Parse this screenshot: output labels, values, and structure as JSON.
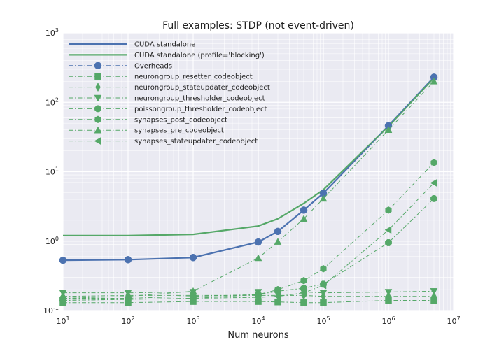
{
  "chart_data": {
    "type": "line",
    "title": "Full examples: STDP (not event-driven)",
    "xlabel": "Num neurons",
    "ylabel": "",
    "xscale": "log",
    "yscale": "log",
    "xlim": [
      10,
      10000000
    ],
    "ylim": [
      0.1,
      1000
    ],
    "x_ticks": [
      {
        "value": 10,
        "base": "10",
        "exp": "1"
      },
      {
        "value": 100,
        "base": "10",
        "exp": "2"
      },
      {
        "value": 1000,
        "base": "10",
        "exp": "3"
      },
      {
        "value": 10000,
        "base": "10",
        "exp": "4"
      },
      {
        "value": 100000,
        "base": "10",
        "exp": "5"
      },
      {
        "value": 1000000,
        "base": "10",
        "exp": "6"
      },
      {
        "value": 10000000,
        "base": "10",
        "exp": "7"
      }
    ],
    "y_ticks": [
      {
        "value": 0.1,
        "base": "10",
        "exp": "-1"
      },
      {
        "value": 1,
        "base": "10",
        "exp": "0"
      },
      {
        "value": 10,
        "base": "10",
        "exp": "1"
      },
      {
        "value": 100,
        "base": "10",
        "exp": "2"
      },
      {
        "value": 1000,
        "base": "10",
        "exp": "3"
      }
    ],
    "grid": true,
    "background": "#eaeaf2",
    "legend_position": "upper-left",
    "series": [
      {
        "name": "CUDA standalone",
        "color": "#4c72b0",
        "line": "solid",
        "marker": "none",
        "x": [
          10,
          100,
          1000,
          10000,
          20000,
          50000,
          100000,
          1000000,
          5000000
        ],
        "y": [
          0.53,
          0.54,
          0.58,
          0.97,
          1.38,
          2.8,
          4.9,
          46,
          230
        ]
      },
      {
        "name": "CUDA standalone (profile='blocking')",
        "color": "#55a868",
        "line": "solid",
        "marker": "none",
        "x": [
          10,
          100,
          1000,
          10000,
          20000,
          50000,
          100000,
          1000000,
          5000000
        ],
        "y": [
          1.2,
          1.2,
          1.25,
          1.65,
          2.1,
          3.5,
          5.5,
          45,
          225
        ]
      },
      {
        "name": "Overheads",
        "color": "#4c72b0",
        "line": "dashdot",
        "marker": "circle",
        "x": [
          10,
          100,
          1000,
          10000,
          20000,
          50000,
          100000,
          1000000,
          5000000
        ],
        "y": [
          0.53,
          0.54,
          0.58,
          0.97,
          1.38,
          2.8,
          4.9,
          46,
          230
        ]
      },
      {
        "name": "neurongroup_resetter_codeobject",
        "color": "#55a868",
        "line": "dashdot",
        "marker": "square",
        "x": [
          10,
          100,
          1000,
          10000,
          20000,
          50000,
          100000,
          1000000,
          5000000
        ],
        "y": [
          0.13,
          0.13,
          0.135,
          0.135,
          0.133,
          0.13,
          0.13,
          0.14,
          0.14
        ]
      },
      {
        "name": "neurongroup_stateupdater_codeobject",
        "color": "#55a868",
        "line": "dashdot",
        "marker": "thin_diamond",
        "x": [
          10,
          100,
          1000,
          10000,
          20000,
          50000,
          100000,
          1000000,
          5000000
        ],
        "y": [
          0.16,
          0.165,
          0.165,
          0.165,
          0.165,
          0.165,
          0.16,
          0.16,
          0.16
        ]
      },
      {
        "name": "neurongroup_thresholder_codeobject",
        "color": "#55a868",
        "line": "dashdot",
        "marker": "triangle_down",
        "x": [
          10,
          100,
          1000,
          10000,
          20000,
          50000,
          100000,
          1000000,
          5000000
        ],
        "y": [
          0.18,
          0.18,
          0.185,
          0.185,
          0.185,
          0.185,
          0.18,
          0.185,
          0.19
        ]
      },
      {
        "name": "poissongroup_thresholder_codeobject",
        "color": "#55a868",
        "line": "dashdot",
        "marker": "octagon",
        "x": [
          10,
          100,
          1000,
          10000,
          20000,
          50000,
          100000,
          1000000,
          5000000
        ],
        "y": [
          0.15,
          0.15,
          0.16,
          0.17,
          0.19,
          0.21,
          0.24,
          0.95,
          4.1
        ]
      },
      {
        "name": "synapses_post_codeobject",
        "color": "#55a868",
        "line": "dashdot",
        "marker": "hexagon",
        "x": [
          10,
          100,
          1000,
          10000,
          20000,
          50000,
          100000,
          1000000,
          5000000
        ],
        "y": [
          0.14,
          0.145,
          0.15,
          0.17,
          0.2,
          0.27,
          0.4,
          2.8,
          13.5
        ]
      },
      {
        "name": "synapses_pre_codeobject",
        "color": "#55a868",
        "line": "dashdot",
        "marker": "triangle_up",
        "x": [
          10,
          100,
          1000,
          10000,
          20000,
          50000,
          100000,
          1000000,
          5000000
        ],
        "y": [
          0.15,
          0.16,
          0.19,
          0.57,
          0.98,
          2.1,
          4.1,
          40,
          200
        ]
      },
      {
        "name": "synapses_stateupdater_codeobject",
        "color": "#55a868",
        "line": "dashdot",
        "marker": "triangle_left",
        "x": [
          10,
          100,
          1000,
          10000,
          20000,
          50000,
          100000,
          1000000,
          5000000
        ],
        "y": [
          0.14,
          0.145,
          0.15,
          0.155,
          0.16,
          0.18,
          0.23,
          1.45,
          6.9
        ]
      }
    ]
  }
}
